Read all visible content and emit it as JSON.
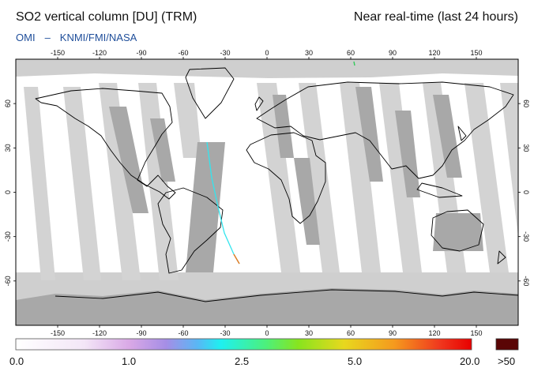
{
  "header": {
    "title": "SO2 vertical column [DU] (TRM)",
    "period": "Near real-time (last 24 hours)",
    "source_org": "OMI",
    "source_partners": "KNMI/FMI/NASA"
  },
  "map": {
    "projection": "equirectangular",
    "lon_range": [
      -180,
      180
    ],
    "lat_range": [
      -90,
      90
    ],
    "lon_ticks": [
      "-150",
      "-120",
      "-90",
      "-60",
      "-30",
      "0",
      "30",
      "60",
      "90",
      "120",
      "150"
    ],
    "lon_tick_values": [
      -150,
      -120,
      -90,
      -60,
      -30,
      0,
      30,
      60,
      90,
      120,
      150
    ],
    "lat_ticks": [
      "60",
      "30",
      "0",
      "-30",
      "-60"
    ],
    "lat_tick_values": [
      60,
      30,
      0,
      -30,
      -60
    ],
    "background_color": "#ffffff",
    "no_data_color": "#cfcfcf",
    "swath_color": "#a8a8a8",
    "coast_color": "#000000"
  },
  "colorbar": {
    "labels": [
      "0.0",
      "1.0",
      "2.5",
      "5.0",
      "20.0"
    ],
    "overflow_label": ">50",
    "overflow_color": "#5a0505",
    "gradient_stops": [
      {
        "offset": 0.0,
        "color": "#ffffff"
      },
      {
        "offset": 0.15,
        "color": "#f3e6f7"
      },
      {
        "offset": 0.25,
        "color": "#d9a8e6"
      },
      {
        "offset": 0.33,
        "color": "#a58ee6"
      },
      {
        "offset": 0.4,
        "color": "#58b8f5"
      },
      {
        "offset": 0.45,
        "color": "#1ef0f0"
      },
      {
        "offset": 0.55,
        "color": "#4df07a"
      },
      {
        "offset": 0.62,
        "color": "#88e41e"
      },
      {
        "offset": 0.72,
        "color": "#e8d81e"
      },
      {
        "offset": 0.83,
        "color": "#f59a1e"
      },
      {
        "offset": 0.93,
        "color": "#f0381e"
      },
      {
        "offset": 1.0,
        "color": "#e80000"
      }
    ]
  }
}
